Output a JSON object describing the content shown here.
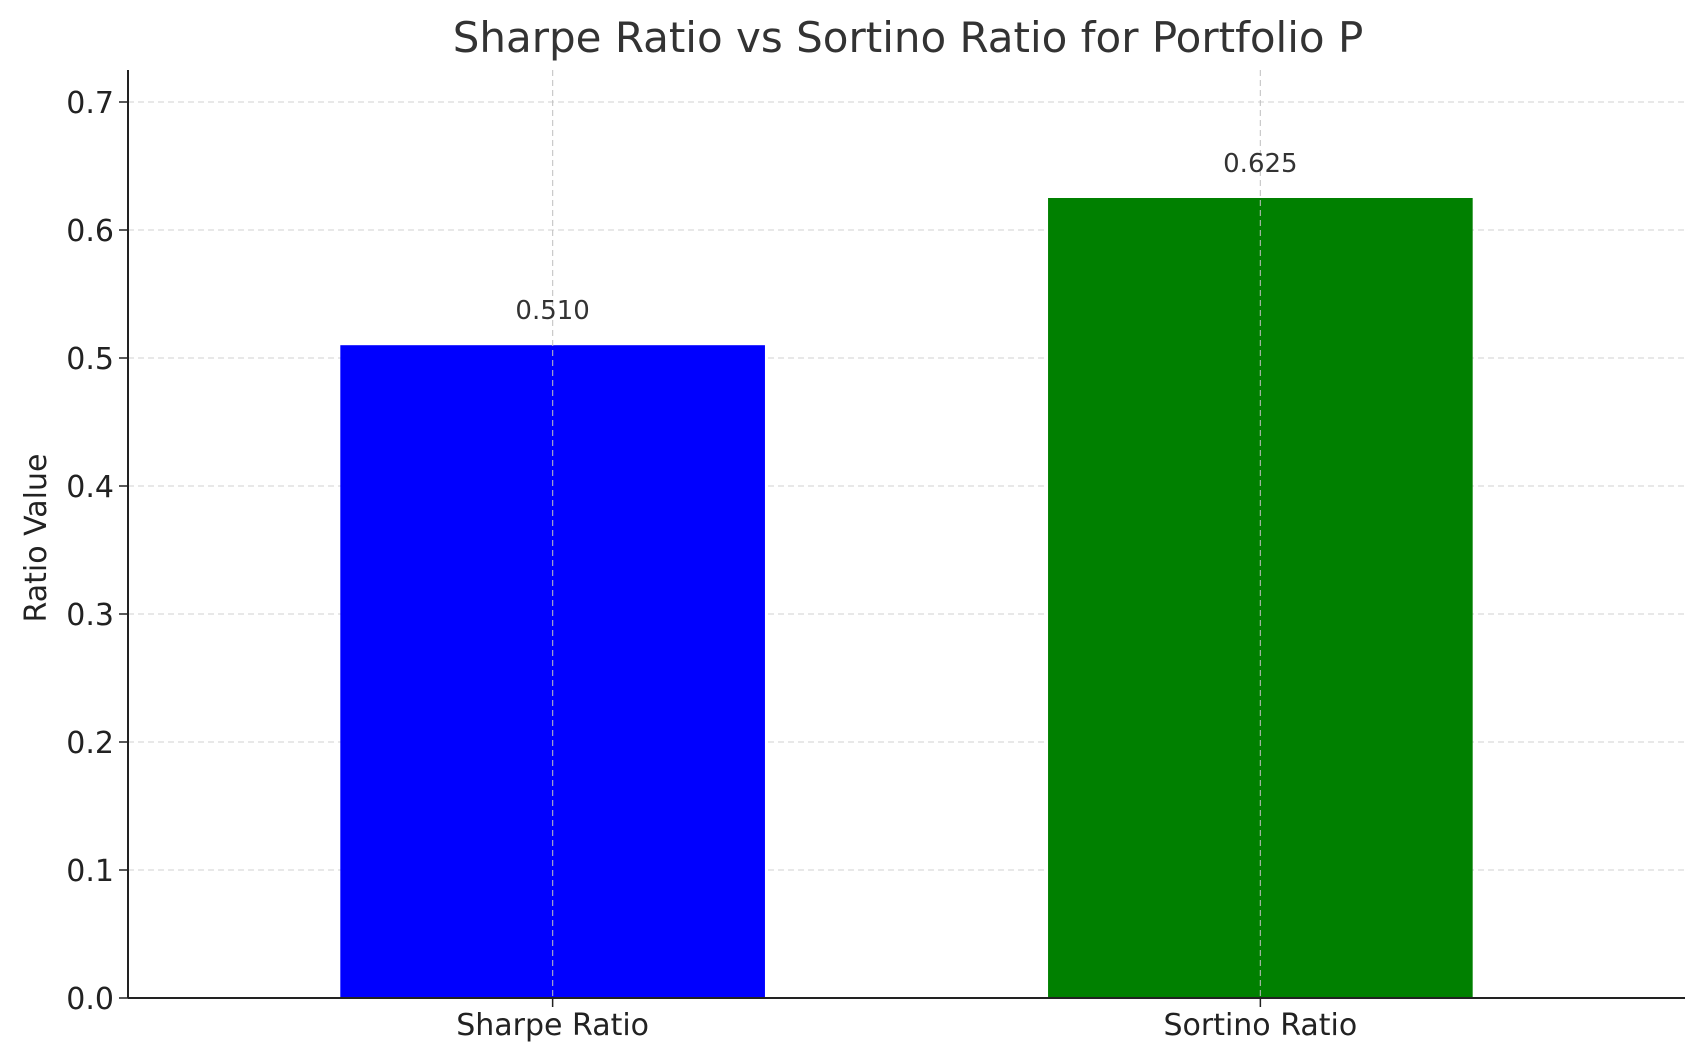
{
  "chart_data": {
    "type": "bar",
    "title": "Sharpe Ratio vs Sortino Ratio for Portfolio P",
    "xlabel": "",
    "ylabel": "Ratio Value",
    "categories": [
      "Sharpe Ratio",
      "Sortino Ratio"
    ],
    "values": [
      0.51,
      0.625
    ],
    "value_labels": [
      "0.510",
      "0.625"
    ],
    "colors": [
      "#0000ff",
      "#008000"
    ],
    "ylim": [
      0,
      0.725
    ],
    "yticks": [
      0.0,
      0.1,
      0.2,
      0.3,
      0.4,
      0.5,
      0.6,
      0.7
    ],
    "ytick_labels": [
      "0.0",
      "0.1",
      "0.2",
      "0.3",
      "0.4",
      "0.5",
      "0.6",
      "0.7"
    ],
    "grid": true,
    "legend": "none"
  }
}
